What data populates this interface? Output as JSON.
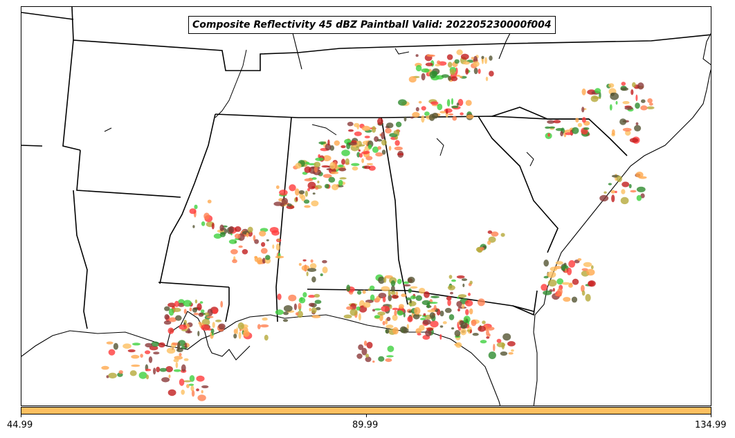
{
  "title": "Composite Reflectivity 45 dBZ Paintball Valid: 202205230000f004",
  "colorbar": {
    "fill_color": "#fdbf60",
    "ticks": [
      "44.99",
      "89.99",
      "134.99"
    ]
  },
  "palette": [
    "#ff3b3b",
    "#ff7f50",
    "#ffa94d",
    "#fdbf60",
    "#3fd13f",
    "#2e8b2e",
    "#b5a93a",
    "#8b3a3a",
    "#c21e1e",
    "#555533"
  ]
}
